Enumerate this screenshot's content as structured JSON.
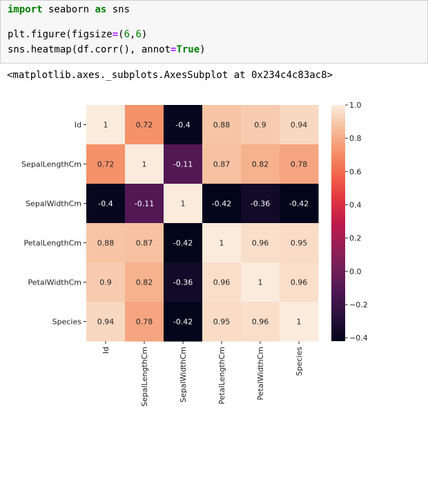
{
  "code_cell": {
    "line1": {
      "keyword_import": "import",
      "module": " seaborn ",
      "keyword_as": "as",
      "alias": " sns"
    },
    "line3": {
      "pre": "plt.figure(figsize",
      "eq": "=",
      "pre_num": "(",
      "n1": "6",
      "comma": ",",
      "n2": "6",
      "post": ")"
    },
    "line4": {
      "pre": "sns.heatmap(df.corr(), annot",
      "eq": "=",
      "true_kw": "True",
      "post": ")"
    }
  },
  "output": {
    "repr_text": "<matplotlib.axes._subplots.AxesSubplot at 0x234c4c83ac8>"
  },
  "chart_data": {
    "type": "heatmap",
    "title": "",
    "xlabel": "",
    "ylabel": "",
    "labels": [
      "Id",
      "SepalLengthCm",
      "SepalWidthCm",
      "PetalLengthCm",
      "PetalWidthCm",
      "Species"
    ],
    "values": [
      [
        1,
        0.72,
        -0.4,
        0.88,
        0.9,
        0.94
      ],
      [
        0.72,
        1,
        -0.11,
        0.87,
        0.82,
        0.78
      ],
      [
        -0.4,
        -0.11,
        1,
        -0.42,
        -0.36,
        -0.42
      ],
      [
        0.88,
        0.87,
        -0.42,
        1,
        0.96,
        0.95
      ],
      [
        0.9,
        0.82,
        -0.36,
        0.96,
        1,
        0.96
      ],
      [
        0.94,
        0.78,
        -0.42,
        0.95,
        0.96,
        1
      ]
    ],
    "annot_labels": [
      [
        "1",
        "0.72",
        "-0.4",
        "0.88",
        "0.9",
        "0.94"
      ],
      [
        "0.72",
        "1",
        "-0.11",
        "0.87",
        "0.82",
        "0.78"
      ],
      [
        "-0.4",
        "-0.11",
        "1",
        "-0.42",
        "-0.36",
        "-0.42"
      ],
      [
        "0.88",
        "0.87",
        "-0.42",
        "1",
        "0.96",
        "0.95"
      ],
      [
        "0.9",
        "0.82",
        "-0.36",
        "0.96",
        "1",
        "0.96"
      ],
      [
        "0.94",
        "0.78",
        "-0.42",
        "0.95",
        "0.96",
        "1"
      ]
    ],
    "colormap": "rocket",
    "vmin": -0.42,
    "vmax": 1.0,
    "colorbar_ticks": [
      1.0,
      0.8,
      0.6,
      0.4,
      0.2,
      0.0,
      -0.2,
      -0.4
    ],
    "colorbar_tick_labels": [
      "1.0",
      "0.8",
      "0.6",
      "0.4",
      "0.2",
      "0.0",
      "−0.2",
      "−0.4"
    ]
  }
}
